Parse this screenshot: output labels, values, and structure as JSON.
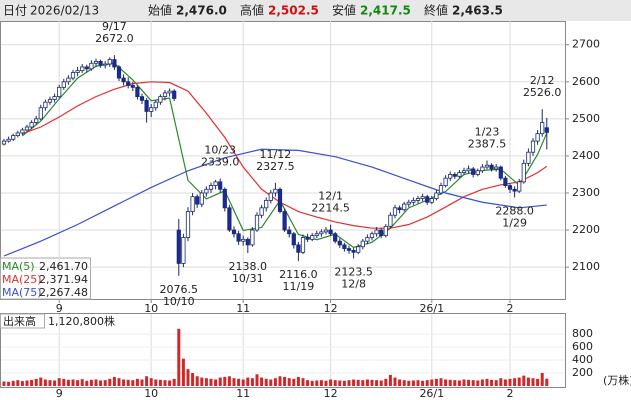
{
  "header": {
    "date_label": "日付",
    "date": "2026/02/13",
    "open_label": "始値",
    "open": "2,476.0",
    "high_label": "高値",
    "high": "2,502.5",
    "low_label": "安値",
    "low": "2,417.5",
    "close_label": "終値",
    "close": "2,463.5"
  },
  "chart_data": {
    "type": "candlestick",
    "ylim": [
      2014,
      2764
    ],
    "yticks": [
      2100,
      2200,
      2300,
      2400,
      2500,
      2600,
      2700
    ],
    "grid": true,
    "xticks": [
      {
        "value": 12,
        "label": "9"
      },
      {
        "value": 32,
        "label": "10"
      },
      {
        "value": 52,
        "label": "11"
      },
      {
        "value": 71,
        "label": "12"
      },
      {
        "value": 93,
        "label": "26/1"
      },
      {
        "value": 110,
        "label": "2"
      }
    ],
    "up_color": "#ffffff",
    "down_color": "#1a2a9a",
    "candles": [
      [
        2432,
        2446,
        2428,
        2440
      ],
      [
        2440,
        2452,
        2436,
        2445
      ],
      [
        2445,
        2460,
        2440,
        2455
      ],
      [
        2455,
        2468,
        2450,
        2462
      ],
      [
        2462,
        2476,
        2456,
        2470
      ],
      [
        2470,
        2484,
        2464,
        2478
      ],
      [
        2478,
        2496,
        2472,
        2490
      ],
      [
        2490,
        2508,
        2484,
        2500
      ],
      [
        2500,
        2538,
        2496,
        2530
      ],
      [
        2530,
        2552,
        2522,
        2545
      ],
      [
        2545,
        2560,
        2538,
        2552
      ],
      [
        2552,
        2568,
        2544,
        2560
      ],
      [
        2560,
        2592,
        2556,
        2585
      ],
      [
        2585,
        2608,
        2578,
        2600
      ],
      [
        2600,
        2618,
        2592,
        2610
      ],
      [
        2610,
        2632,
        2604,
        2625
      ],
      [
        2625,
        2640,
        2615,
        2630
      ],
      [
        2630,
        2648,
        2624,
        2640
      ],
      [
        2640,
        2646,
        2626,
        2635
      ],
      [
        2635,
        2658,
        2630,
        2650
      ],
      [
        2650,
        2662,
        2640,
        2655
      ],
      [
        2655,
        2660,
        2638,
        2645
      ],
      [
        2645,
        2656,
        2636,
        2648
      ],
      [
        2648,
        2666,
        2640,
        2660
      ],
      [
        2660,
        2672,
        2632,
        2640
      ],
      [
        2640,
        2645,
        2602,
        2610
      ],
      [
        2610,
        2620,
        2590,
        2600
      ],
      [
        2600,
        2612,
        2582,
        2590
      ],
      [
        2590,
        2600,
        2575,
        2585
      ],
      [
        2585,
        2590,
        2552,
        2560
      ],
      [
        2560,
        2568,
        2540,
        2550
      ],
      [
        2550,
        2556,
        2490,
        2520
      ],
      [
        2520,
        2540,
        2505,
        2530
      ],
      [
        2530,
        2552,
        2522,
        2545
      ],
      [
        2545,
        2566,
        2538,
        2560
      ],
      [
        2560,
        2578,
        2550,
        2570
      ],
      [
        2570,
        2582,
        2560,
        2575
      ],
      [
        2575,
        2580,
        2548,
        2555
      ],
      [
        2200,
        2230,
        2076.5,
        2110
      ],
      [
        2110,
        2190,
        2100,
        2180
      ],
      [
        2180,
        2262,
        2170,
        2250
      ],
      [
        2250,
        2300,
        2240,
        2290
      ],
      [
        2290,
        2296,
        2260,
        2270
      ],
      [
        2270,
        2308,
        2262,
        2300
      ],
      [
        2300,
        2318,
        2290,
        2310
      ],
      [
        2310,
        2328,
        2300,
        2320
      ],
      [
        2320,
        2335,
        2310,
        2330
      ],
      [
        2330,
        2339,
        2300,
        2310
      ],
      [
        2310,
        2315,
        2250,
        2260
      ],
      [
        2260,
        2268,
        2195,
        2200
      ],
      [
        2200,
        2210,
        2180,
        2190
      ],
      [
        2190,
        2198,
        2160,
        2170
      ],
      [
        2170,
        2185,
        2158,
        2175
      ],
      [
        2175,
        2180,
        2138,
        2160
      ],
      [
        2160,
        2208,
        2155,
        2200
      ],
      [
        2200,
        2248,
        2195,
        2240
      ],
      [
        2240,
        2268,
        2232,
        2260
      ],
      [
        2260,
        2288,
        2250,
        2280
      ],
      [
        2280,
        2308,
        2272,
        2300
      ],
      [
        2300,
        2327.5,
        2290,
        2310
      ],
      [
        2310,
        2315,
        2245,
        2250
      ],
      [
        2250,
        2258,
        2195,
        2200
      ],
      [
        2200,
        2210,
        2180,
        2190
      ],
      [
        2190,
        2195,
        2150,
        2160
      ],
      [
        2160,
        2168,
        2116,
        2140
      ],
      [
        2140,
        2188,
        2135,
        2180
      ],
      [
        2180,
        2190,
        2168,
        2175
      ],
      [
        2175,
        2192,
        2170,
        2185
      ],
      [
        2185,
        2198,
        2178,
        2190
      ],
      [
        2190,
        2202,
        2182,
        2195
      ],
      [
        2195,
        2208,
        2188,
        2200
      ],
      [
        2200,
        2214.5,
        2184,
        2190
      ],
      [
        2190,
        2195,
        2164,
        2170
      ],
      [
        2170,
        2178,
        2152,
        2160
      ],
      [
        2160,
        2166,
        2142,
        2150
      ],
      [
        2150,
        2158,
        2136,
        2145
      ],
      [
        2145,
        2152,
        2123.5,
        2140
      ],
      [
        2140,
        2162,
        2135,
        2155
      ],
      [
        2155,
        2176,
        2148,
        2170
      ],
      [
        2170,
        2188,
        2162,
        2180
      ],
      [
        2180,
        2196,
        2172,
        2190
      ],
      [
        2190,
        2208,
        2182,
        2200
      ],
      [
        2200,
        2205,
        2178,
        2185
      ],
      [
        2185,
        2216,
        2180,
        2210
      ],
      [
        2210,
        2248,
        2205,
        2240
      ],
      [
        2240,
        2268,
        2232,
        2260
      ],
      [
        2260,
        2266,
        2245,
        2255
      ],
      [
        2255,
        2276,
        2250,
        2270
      ],
      [
        2270,
        2282,
        2262,
        2275
      ],
      [
        2275,
        2288,
        2268,
        2280
      ],
      [
        2280,
        2292,
        2272,
        2285
      ],
      [
        2285,
        2298,
        2278,
        2290
      ],
      [
        2290,
        2295,
        2268,
        2275
      ],
      [
        2275,
        2292,
        2270,
        2285
      ],
      [
        2285,
        2308,
        2280,
        2300
      ],
      [
        2300,
        2328,
        2295,
        2320
      ],
      [
        2320,
        2348,
        2315,
        2340
      ],
      [
        2340,
        2358,
        2332,
        2350
      ],
      [
        2350,
        2356,
        2338,
        2345
      ],
      [
        2345,
        2362,
        2340,
        2355
      ],
      [
        2355,
        2368,
        2348,
        2360
      ],
      [
        2360,
        2374,
        2352,
        2365
      ],
      [
        2365,
        2370,
        2342,
        2350
      ],
      [
        2350,
        2366,
        2345,
        2360
      ],
      [
        2360,
        2378,
        2354,
        2370
      ],
      [
        2370,
        2387.5,
        2364,
        2375
      ],
      [
        2375,
        2380,
        2358,
        2365
      ],
      [
        2365,
        2378,
        2358,
        2370
      ],
      [
        2370,
        2374,
        2334,
        2340
      ],
      [
        2340,
        2346,
        2314,
        2320
      ],
      [
        2320,
        2326,
        2300,
        2310
      ],
      [
        2310,
        2318,
        2288,
        2305
      ],
      [
        2305,
        2338,
        2300,
        2330
      ],
      [
        2330,
        2390,
        2325,
        2380
      ],
      [
        2380,
        2420,
        2372,
        2410
      ],
      [
        2410,
        2448,
        2400,
        2440
      ],
      [
        2440,
        2470,
        2430,
        2460
      ],
      [
        2460,
        2526,
        2452,
        2490
      ],
      [
        2476,
        2502.5,
        2417.5,
        2463.5
      ]
    ],
    "series": [
      {
        "name": "MA(5)",
        "color": "#2a8a2a",
        "last_label": "2,461.70",
        "x": [
          4,
          8,
          12,
          16,
          20,
          24,
          28,
          32,
          36,
          40,
          44,
          48,
          52,
          56,
          60,
          64,
          68,
          72,
          76,
          80,
          84,
          88,
          92,
          96,
          100,
          104,
          108,
          112,
          116,
          118
        ],
        "values": [
          2454,
          2494,
          2554,
          2610,
          2642,
          2650,
          2605,
          2549,
          2556,
          2334,
          2284,
          2306,
          2199,
          2207,
          2280,
          2188,
          2174,
          2189,
          2153,
          2167,
          2205,
          2260,
          2281,
          2304,
          2350,
          2361,
          2364,
          2321,
          2404,
          2461.7
        ]
      },
      {
        "name": "MA(25)",
        "color": "#e03030",
        "last_label": "2,371.94",
        "x": [
          4,
          8,
          12,
          16,
          20,
          24,
          28,
          32,
          36,
          40,
          44,
          48,
          52,
          56,
          60,
          64,
          68,
          72,
          76,
          80,
          84,
          88,
          92,
          96,
          100,
          104,
          108,
          112,
          116,
          118
        ],
        "values": [
          2460,
          2478,
          2505,
          2535,
          2560,
          2580,
          2595,
          2600,
          2598,
          2575,
          2515,
          2450,
          2370,
          2310,
          2275,
          2250,
          2235,
          2222,
          2212,
          2205,
          2205,
          2215,
          2235,
          2262,
          2290,
          2310,
          2322,
          2330,
          2355,
          2371.94
        ]
      },
      {
        "name": "MA(75)",
        "color": "#3a4fd0",
        "last_label": "2,267.48",
        "x": [
          0,
          8,
          16,
          24,
          32,
          40,
          48,
          56,
          64,
          72,
          80,
          88,
          96,
          104,
          112,
          118
        ],
        "values": [
          2130,
          2170,
          2215,
          2265,
          2315,
          2360,
          2395,
          2418,
          2415,
          2398,
          2370,
          2335,
          2300,
          2275,
          2260,
          2267.48
        ]
      }
    ],
    "annotations": [
      {
        "date": "9/17",
        "price": "2672.0"
      },
      {
        "date": "10/10",
        "price": "2076.5"
      },
      {
        "date": "10/23",
        "price": "2339.0"
      },
      {
        "date": "10/31",
        "price": "2138.0"
      },
      {
        "date": "11/12",
        "price": "2327.5"
      },
      {
        "date": "11/19",
        "price": "2116.0"
      },
      {
        "date": "12/1",
        "price": "2214.5"
      },
      {
        "date": "12/8",
        "price": "2123.5"
      },
      {
        "date": "1/23",
        "price": "2387.5"
      },
      {
        "date": "1/29",
        "price": "2288.0"
      },
      {
        "date": "2/12",
        "price": "2526.0"
      }
    ],
    "volume": {
      "title": "出来高",
      "last_label": "1,120,800株",
      "unit": "(万株)",
      "ylim": [
        0,
        1000
      ],
      "yticks": [
        200,
        400,
        600,
        800
      ],
      "color": "#d02828",
      "values": [
        70,
        65,
        80,
        90,
        75,
        85,
        95,
        110,
        130,
        100,
        90,
        85,
        120,
        110,
        95,
        100,
        90,
        105,
        80,
        95,
        100,
        85,
        90,
        110,
        140,
        120,
        100,
        95,
        90,
        110,
        100,
        150,
        120,
        100,
        95,
        90,
        85,
        110,
        880,
        420,
        260,
        200,
        150,
        130,
        120,
        110,
        100,
        130,
        140,
        150,
        120,
        110,
        100,
        130,
        120,
        180,
        130,
        110,
        100,
        120,
        150,
        140,
        120,
        110,
        140,
        120,
        90,
        80,
        85,
        90,
        80,
        100,
        90,
        85,
        80,
        90,
        100,
        95,
        90,
        100,
        95,
        90,
        85,
        110,
        170,
        130,
        100,
        90,
        80,
        85,
        90,
        80,
        90,
        100,
        110,
        120,
        100,
        95,
        90,
        85,
        100,
        95,
        90,
        85,
        100,
        110,
        95,
        90,
        120,
        100,
        110,
        120,
        130,
        160,
        130,
        120,
        110,
        200,
        112.08
      ]
    }
  }
}
